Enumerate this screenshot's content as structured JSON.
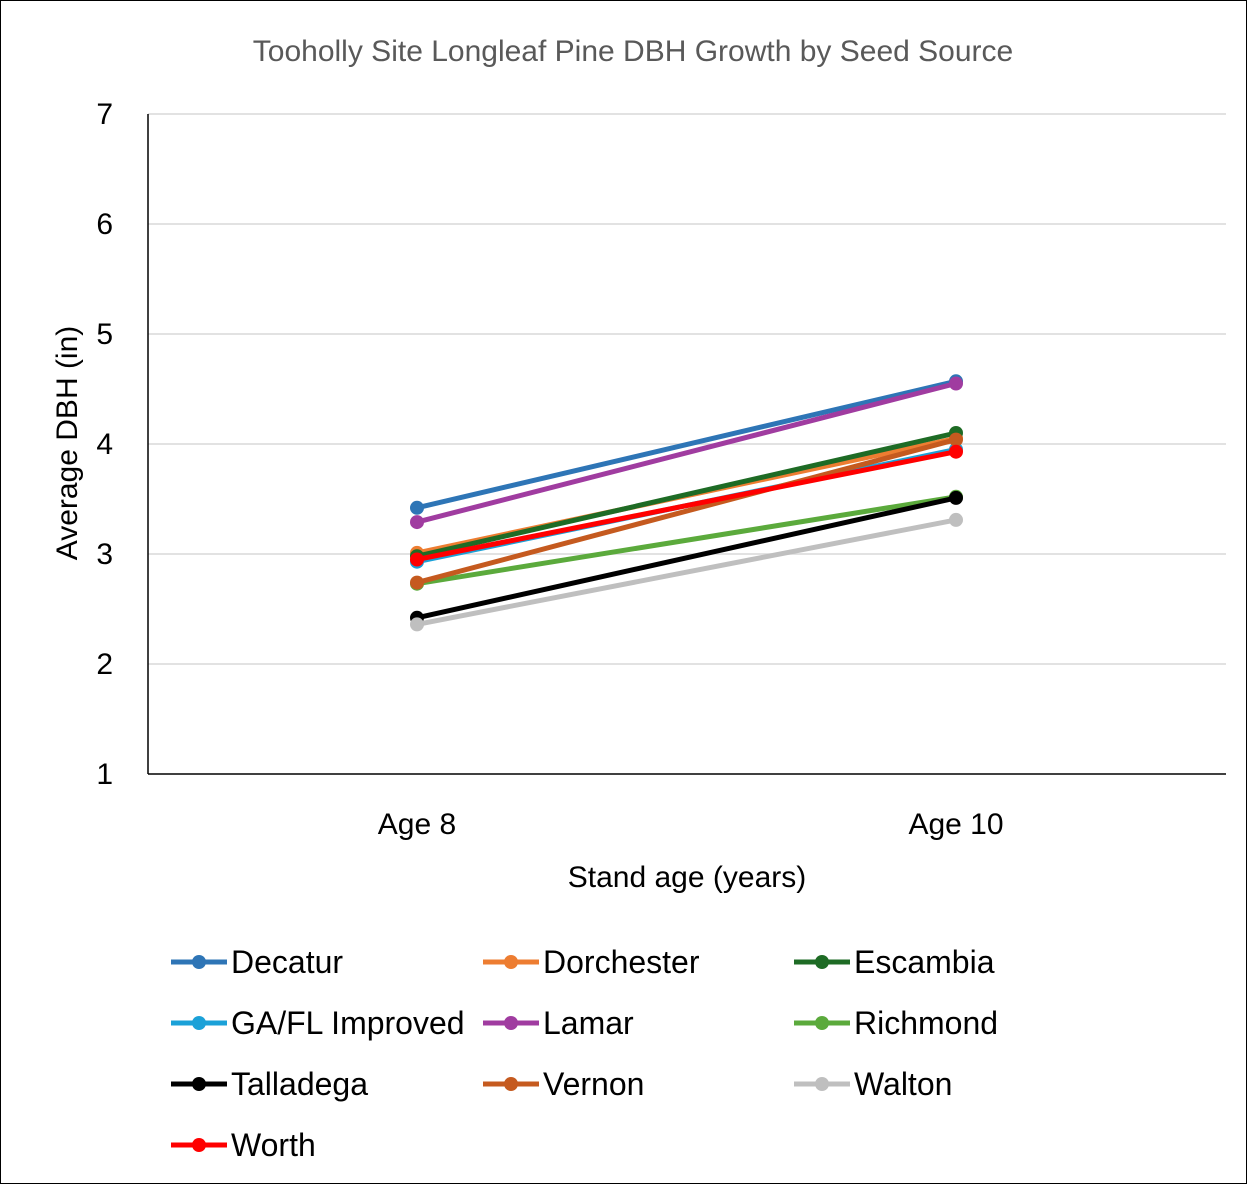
{
  "chart_data": {
    "type": "line",
    "title": "Tooholly Site Longleaf Pine DBH Growth by Seed Source",
    "xlabel": "Stand age (years)",
    "ylabel": "Average DBH (in)",
    "categories": [
      "Age 8",
      "Age 10"
    ],
    "ylim": [
      1,
      7
    ],
    "yticks": [
      1,
      2,
      3,
      4,
      5,
      6,
      7
    ],
    "grid": true,
    "legend_position": "bottom",
    "series": [
      {
        "name": "Decatur",
        "color": "#2E75B6",
        "values": [
          3.42,
          4.57
        ]
      },
      {
        "name": "Dorchester",
        "color": "#ED7D31",
        "values": [
          3.01,
          4.05
        ]
      },
      {
        "name": "Escambia",
        "color": "#1E6B25",
        "values": [
          2.98,
          4.1
        ]
      },
      {
        "name": "GA/FL Improved",
        "color": "#1BA1D8",
        "values": [
          2.93,
          3.95
        ]
      },
      {
        "name": "Lamar",
        "color": "#A03CA0",
        "values": [
          3.29,
          4.55
        ]
      },
      {
        "name": "Richmond",
        "color": "#5BAA3C",
        "values": [
          2.73,
          3.52
        ]
      },
      {
        "name": "Talladega",
        "color": "#000000",
        "values": [
          2.42,
          3.51
        ]
      },
      {
        "name": "Vernon",
        "color": "#C55A1F",
        "values": [
          2.74,
          4.04
        ]
      },
      {
        "name": "Walton",
        "color": "#BFBFBF",
        "values": [
          2.36,
          3.31
        ]
      },
      {
        "name": "Worth",
        "color": "#FF0000",
        "values": [
          2.95,
          3.93
        ]
      }
    ]
  }
}
